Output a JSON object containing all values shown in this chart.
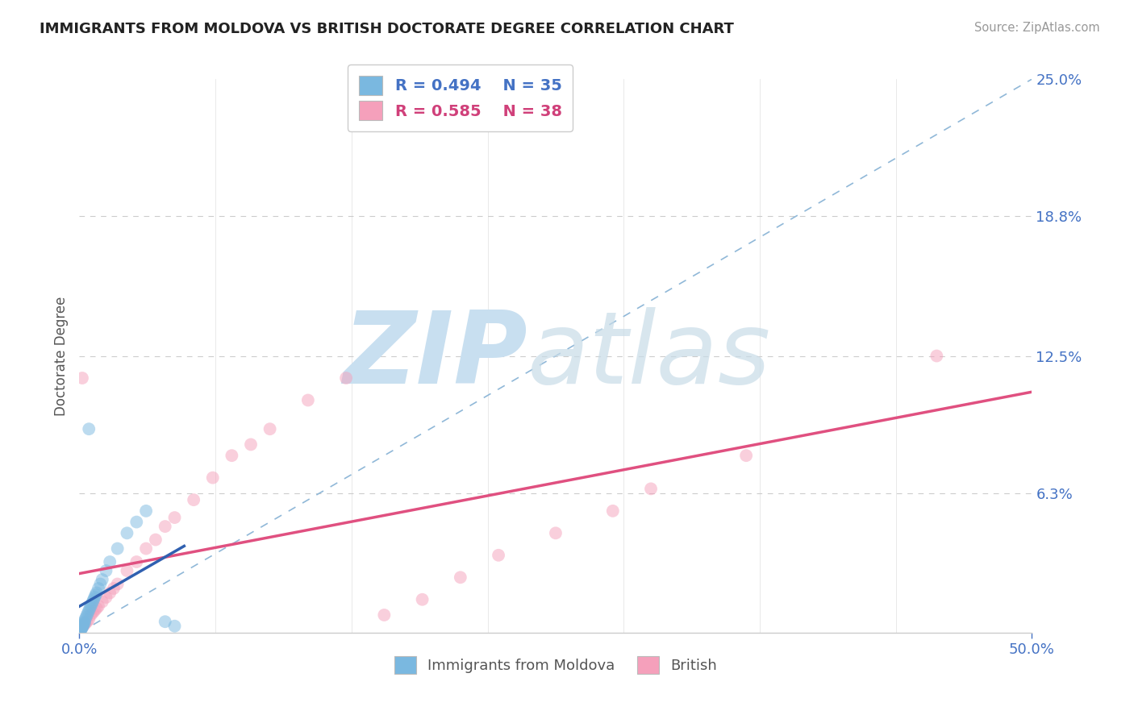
{
  "title": "IMMIGRANTS FROM MOLDOVA VS BRITISH DOCTORATE DEGREE CORRELATION CHART",
  "source": "Source: ZipAtlas.com",
  "ylabel": "Doctorate Degree",
  "legend_r1": "R = 0.494",
  "legend_n1": "N = 35",
  "legend_r2": "R = 0.585",
  "legend_n2": "N = 38",
  "legend_label1": "Immigrants from Moldova",
  "legend_label2": "British",
  "blue_scatter_color": "#7ab8e0",
  "pink_scatter_color": "#f5a0bb",
  "blue_line_color": "#3060b0",
  "pink_line_color": "#e05080",
  "dash_line_color": "#90b8d8",
  "grid_color": "#cccccc",
  "axis_color": "#4472c4",
  "title_color": "#222222",
  "source_color": "#999999",
  "ylabel_color": "#555555",
  "xlim": [
    0,
    50
  ],
  "ylim": [
    0,
    25
  ],
  "yticks": [
    0,
    6.3,
    12.5,
    18.8,
    25.0
  ],
  "ytick_labels": [
    "",
    "6.3%",
    "12.5%",
    "18.8%",
    "25.0%"
  ],
  "blue_x": [
    0.05,
    0.08,
    0.1,
    0.12,
    0.15,
    0.18,
    0.2,
    0.22,
    0.25,
    0.28,
    0.3,
    0.35,
    0.4,
    0.45,
    0.5,
    0.55,
    0.6,
    0.65,
    0.7,
    0.75,
    0.8,
    0.85,
    0.9,
    1.0,
    1.1,
    1.2,
    1.4,
    1.6,
    2.0,
    2.5,
    3.0,
    3.5,
    0.5,
    5.0,
    4.5
  ],
  "blue_y": [
    0.1,
    0.15,
    0.2,
    0.18,
    0.25,
    0.3,
    0.35,
    0.4,
    0.5,
    0.45,
    0.6,
    0.7,
    0.8,
    0.9,
    1.0,
    1.1,
    1.2,
    1.3,
    1.4,
    1.5,
    1.6,
    1.7,
    1.8,
    2.0,
    2.2,
    2.4,
    2.8,
    3.2,
    3.8,
    4.5,
    5.0,
    5.5,
    9.2,
    0.3,
    0.5
  ],
  "pink_x": [
    0.1,
    0.2,
    0.3,
    0.4,
    0.5,
    0.6,
    0.7,
    0.8,
    0.9,
    1.0,
    1.2,
    1.4,
    1.6,
    1.8,
    2.0,
    2.5,
    3.0,
    3.5,
    4.0,
    4.5,
    5.0,
    6.0,
    7.0,
    8.0,
    9.0,
    10.0,
    12.0,
    14.0,
    16.0,
    18.0,
    20.0,
    22.0,
    25.0,
    28.0,
    30.0,
    35.0,
    45.0,
    0.15
  ],
  "pink_y": [
    0.2,
    0.3,
    0.4,
    0.5,
    0.6,
    0.8,
    0.9,
    1.0,
    1.1,
    1.2,
    1.4,
    1.6,
    1.8,
    2.0,
    2.2,
    2.8,
    3.2,
    3.8,
    4.2,
    4.8,
    5.2,
    6.0,
    7.0,
    8.0,
    8.5,
    9.2,
    10.5,
    11.5,
    0.8,
    1.5,
    2.5,
    3.5,
    4.5,
    5.5,
    6.5,
    8.0,
    12.5,
    11.5
  ],
  "marker_size": 130,
  "marker_alpha": 0.5,
  "blue_line_x0": 0.0,
  "blue_line_y0": 0.3,
  "blue_line_x1": 5.0,
  "blue_line_y1": 6.0,
  "pink_line_x0": 0.0,
  "pink_line_y0": 0.5,
  "pink_line_x1": 50.0,
  "pink_line_y1": 15.0
}
